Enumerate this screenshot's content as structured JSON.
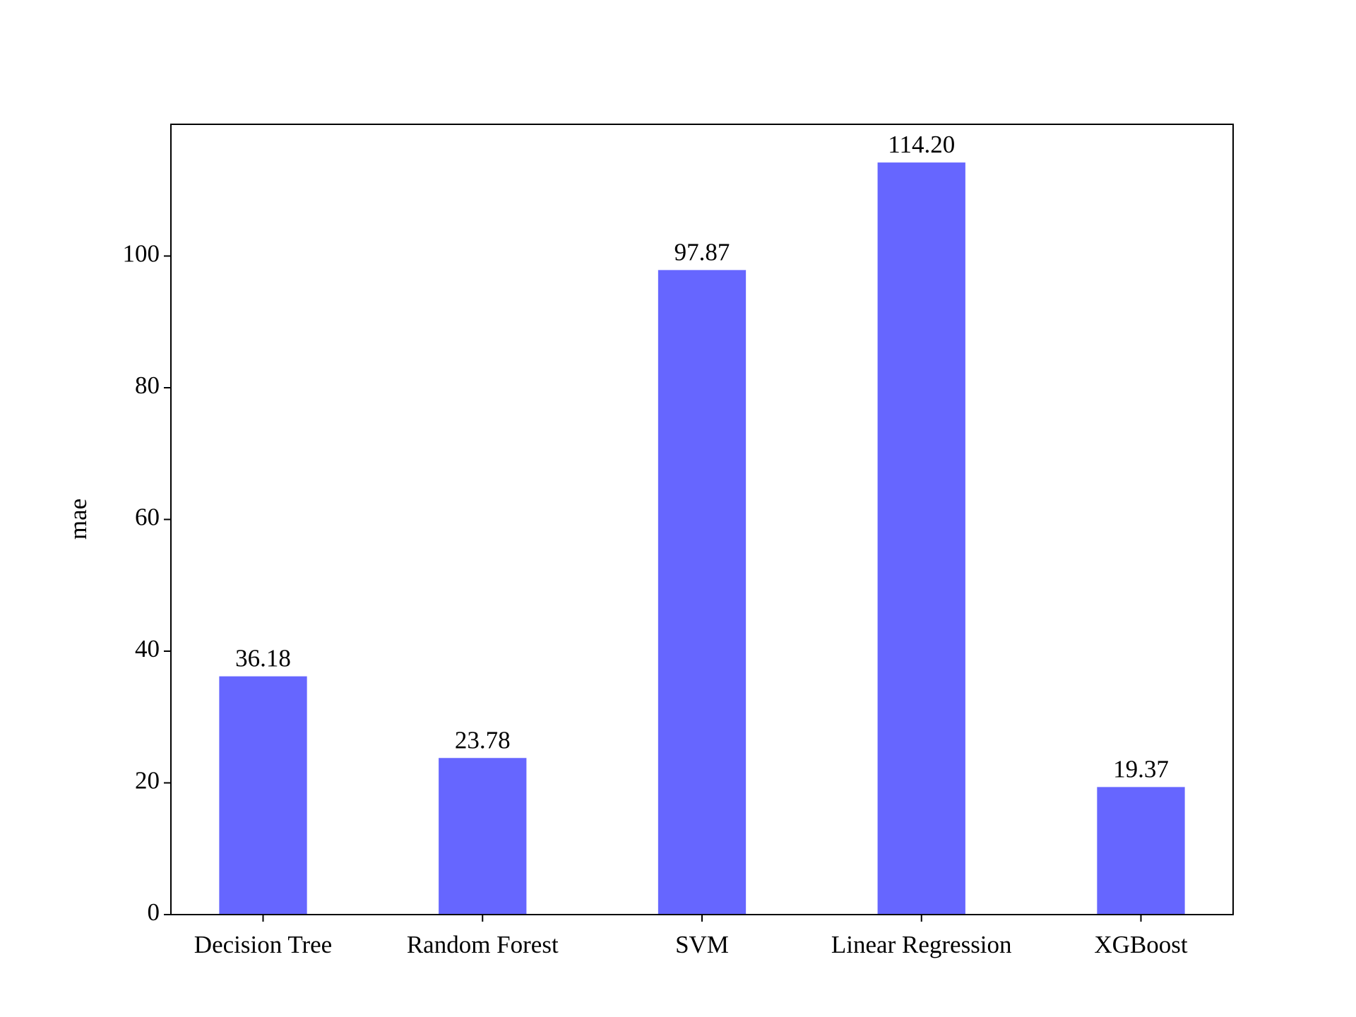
{
  "chart_data": {
    "type": "bar",
    "categories": [
      "Decision Tree",
      "Random Forest",
      "SVM",
      "Linear Regression",
      "XGBoost"
    ],
    "values": [
      36.18,
      23.78,
      97.87,
      114.2,
      19.37
    ],
    "value_labels": [
      "36.18",
      "23.78",
      "97.87",
      "114.20",
      "19.37"
    ],
    "color": "#6666ff",
    "y_label": "mae",
    "ylim": [
      0,
      120
    ],
    "yticks": [
      0,
      20,
      40,
      60,
      80,
      100
    ],
    "grid": false
  }
}
